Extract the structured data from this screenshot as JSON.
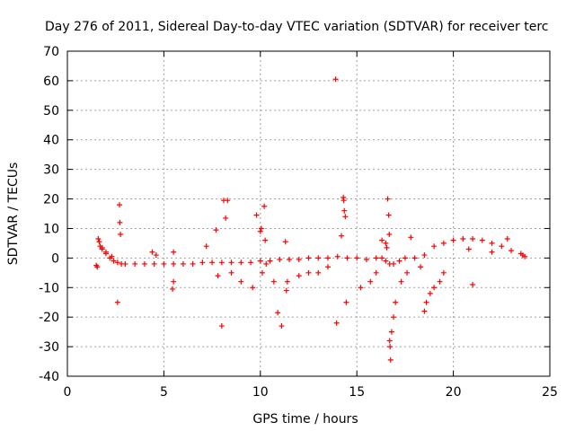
{
  "chart_data": {
    "type": "scatter",
    "title": "Day 276 of 2011, Sidereal Day-to-day VTEC variation (SDTVAR) for receiver terc",
    "xlabel": "GPS time / hours",
    "ylabel": "SDTVAR / TECUs",
    "xlim": [
      0,
      25
    ],
    "ylim": [
      -40,
      70
    ],
    "xticks": [
      0,
      5,
      10,
      15,
      20,
      25
    ],
    "yticks": [
      -40,
      -30,
      -20,
      -10,
      0,
      10,
      20,
      30,
      40,
      50,
      60,
      70
    ],
    "grid": true,
    "marker": "+",
    "color": "#ff0000",
    "series": [
      {
        "name": "SDTVAR",
        "x": [
          1.5,
          1.6,
          1.7,
          1.8,
          2.0,
          2.2,
          2.4,
          2.6,
          2.8,
          3.0,
          3.5,
          4.0,
          4.5,
          5.0,
          5.5,
          6.0,
          6.5,
          7.0,
          7.5,
          8.0,
          8.5,
          9.0,
          9.5,
          10.0,
          10.5,
          11.0,
          11.5,
          12.0,
          12.5,
          13.0,
          13.5,
          14.0,
          14.5,
          15.0,
          15.5,
          16.0,
          16.3,
          16.5,
          16.7,
          16.9,
          17.2,
          17.5,
          18.0,
          18.5,
          19.0,
          19.5,
          20.0,
          20.5,
          21.0,
          21.5,
          22.0,
          22.5,
          23.0,
          23.5,
          23.7,
          1.55,
          1.65,
          1.8,
          2.0,
          2.3,
          2.6,
          2.7,
          2.72,
          2.75,
          4.4,
          4.6,
          5.5,
          5.5,
          5.45,
          7.2,
          7.7,
          7.8,
          8.0,
          8.1,
          8.2,
          8.3,
          8.5,
          9.0,
          9.6,
          9.8,
          10.0,
          10.05,
          10.2,
          10.25,
          10.1,
          10.3,
          10.7,
          10.9,
          11.1,
          11.3,
          11.35,
          11.4,
          12.0,
          12.5,
          13.0,
          13.5,
          13.9,
          13.95,
          14.3,
          14.32,
          14.35,
          14.4,
          14.2,
          14.45,
          15.2,
          15.7,
          16.0,
          16.3,
          16.5,
          16.55,
          16.6,
          16.65,
          16.68,
          16.7,
          16.72,
          16.75,
          16.8,
          16.9,
          17.0,
          17.3,
          17.6,
          17.8,
          18.3,
          18.5,
          18.6,
          18.8,
          19.0,
          19.3,
          19.5,
          20.8,
          21.0,
          22.0,
          22.8,
          23.6
        ],
        "y": [
          -2.5,
          6.5,
          4.0,
          3.0,
          1.5,
          0.0,
          -1.0,
          -1.5,
          -2.0,
          -2.0,
          -2.0,
          -2.0,
          -2.0,
          -2.0,
          -2.0,
          -2.0,
          -2.0,
          -1.5,
          -1.5,
          -1.5,
          -1.5,
          -1.5,
          -1.5,
          -1.0,
          -1.0,
          -0.5,
          -0.5,
          -0.5,
          0.0,
          0.0,
          0.0,
          0.5,
          0.0,
          0.0,
          -0.5,
          0.0,
          0.0,
          -1.0,
          -2.0,
          -2.0,
          -1.0,
          0.0,
          0.0,
          1.0,
          4.0,
          5.0,
          6.0,
          6.5,
          6.5,
          6.0,
          5.0,
          4.0,
          2.5,
          1.5,
          0.5,
          -3.0,
          5.5,
          3.5,
          2.0,
          0.5,
          -15.0,
          18.0,
          12.0,
          8.0,
          2.0,
          1.0,
          2.0,
          -8.0,
          -10.5,
          4.0,
          9.5,
          -6.0,
          -23.0,
          19.5,
          13.5,
          19.5,
          -5.0,
          -8.0,
          -10.0,
          14.5,
          9.0,
          10.0,
          17.5,
          6.0,
          -5.0,
          -2.0,
          -8.0,
          -18.5,
          -23.0,
          5.5,
          -11.0,
          -8.0,
          -6.0,
          -5.0,
          -5.0,
          -3.0,
          60.5,
          -22.0,
          20.5,
          19.5,
          16.0,
          14.0,
          7.5,
          -15.0,
          -10.0,
          -8.0,
          -5.0,
          6.0,
          5.0,
          3.5,
          20.0,
          14.5,
          8.0,
          -28.0,
          -30.0,
          -34.5,
          -25.0,
          -20.0,
          -15.0,
          -8.0,
          -5.0,
          7.0,
          -3.0,
          -18.0,
          -15.0,
          -12.0,
          -10.0,
          -8.0,
          -5.0,
          3.0,
          -9.0,
          2.0,
          6.5,
          1.0
        ]
      }
    ]
  }
}
